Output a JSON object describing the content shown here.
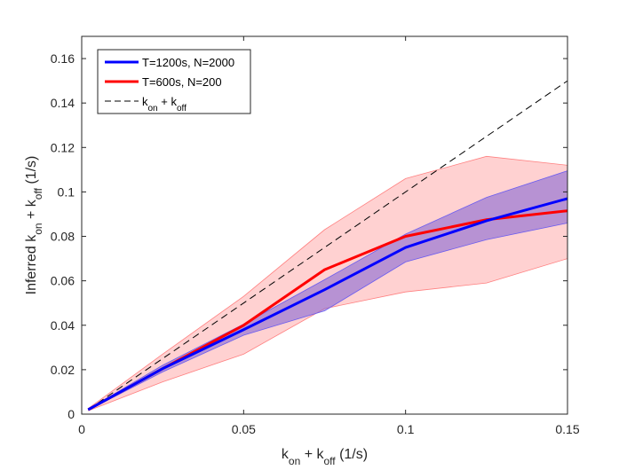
{
  "chart_data": {
    "type": "line",
    "title": "",
    "xlabel": {
      "parts": [
        {
          "text": "k",
          "sub": "on"
        },
        {
          "text": " + k",
          "sub": "off"
        },
        {
          "text": " (1/s)",
          "sub": ""
        }
      ]
    },
    "ylabel": {
      "parts": [
        {
          "text": "Inferred k",
          "sub": "on"
        },
        {
          "text": " + k",
          "sub": "off"
        },
        {
          "text": " (1/s)",
          "sub": ""
        }
      ]
    },
    "xlim": [
      0,
      0.15
    ],
    "ylim": [
      0,
      0.17
    ],
    "xticks": [
      0,
      0.05,
      0.1,
      0.15
    ],
    "xtick_labels": [
      "0",
      "0.05",
      "0.1",
      "0.15"
    ],
    "yticks": [
      0,
      0.02,
      0.04,
      0.06,
      0.08,
      0.1,
      0.12,
      0.14,
      0.16
    ],
    "ytick_labels": [
      "0",
      "0.02",
      "0.04",
      "0.06",
      "0.08",
      "0.1",
      "0.12",
      "0.14",
      "0.16"
    ],
    "grid": false,
    "legend_position": "top-left",
    "x": [
      0.002,
      0.025,
      0.05,
      0.075,
      0.1,
      0.125,
      0.15
    ],
    "series": [
      {
        "name": "T=1200s, N=2000",
        "color": "#0000ff",
        "band_color": "#7b5fd6",
        "values": [
          0.002,
          0.0205,
          0.038,
          0.056,
          0.075,
          0.087,
          0.097
        ],
        "band_upper": [
          0.0022,
          0.022,
          0.0405,
          0.0605,
          0.081,
          0.0975,
          0.1095
        ],
        "band_lower": [
          0.0018,
          0.019,
          0.0355,
          0.0465,
          0.0685,
          0.0785,
          0.086
        ]
      },
      {
        "name": "T=600s, N=200",
        "color": "#ff0000",
        "band_color": "#ff9a9a",
        "values": [
          0.002,
          0.0205,
          0.04,
          0.065,
          0.08,
          0.0875,
          0.0915
        ],
        "band_upper": [
          0.0025,
          0.027,
          0.053,
          0.083,
          0.106,
          0.116,
          0.112
        ],
        "band_lower": [
          0.0015,
          0.0145,
          0.027,
          0.0475,
          0.055,
          0.059,
          0.07
        ]
      },
      {
        "name_parts": [
          {
            "text": "k",
            "sub": "on"
          },
          {
            "text": " + k",
            "sub": "off"
          }
        ],
        "color": "#000000",
        "style": "dashed",
        "x": [
          0.002,
          0.15
        ],
        "values": [
          0.002,
          0.15
        ]
      }
    ],
    "legend": [
      {
        "parts": [
          {
            "text": "T=1200s, N=2000",
            "sub": ""
          }
        ],
        "color": "#0000ff",
        "style": "solid"
      },
      {
        "parts": [
          {
            "text": "T=600s, N=200",
            "sub": ""
          }
        ],
        "color": "#ff0000",
        "style": "solid"
      },
      {
        "parts": [
          {
            "text": "k",
            "sub": "on"
          },
          {
            "text": " + k",
            "sub": "off"
          }
        ],
        "color": "#000000",
        "style": "dashed"
      }
    ]
  }
}
